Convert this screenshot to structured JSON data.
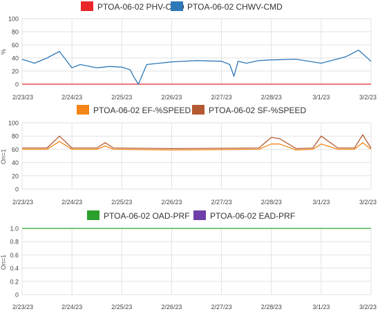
{
  "chart_data": [
    {
      "type": "line",
      "title": "",
      "xlabel": "",
      "ylabel": "%",
      "ylim": [
        0,
        100
      ],
      "yticks": [
        0,
        20,
        40,
        60,
        80,
        100
      ],
      "xlim": [
        "2/23/23",
        "3/2/23"
      ],
      "x_ticks": [
        "2/23/23",
        "2/24/23",
        "2/25/23",
        "2/26/23",
        "2/27/23",
        "2/28/23",
        "3/1/23",
        "3/2/23"
      ],
      "grid": true,
      "legend": "top",
      "series": [
        {
          "name": "PTOA-06-02 PHV-CMD",
          "color": "#e8262a",
          "x": [
            "2/23/23",
            "3/2/23"
          ],
          "y": [
            0,
            0
          ]
        },
        {
          "name": "PTOA-06-02 CHWV-CMD",
          "color": "#2f78b7",
          "x": [
            "2/23/23",
            "2/23/23 06:00",
            "2/23/23 12:00",
            "2/23/23 18:00",
            "2/24/23",
            "2/24/23 04:00",
            "2/24/23 12:00",
            "2/24/23 18:00",
            "2/25/23",
            "2/25/23 04:00",
            "2/25/23 06:00",
            "2/25/23 08:00",
            "2/25/23 12:00",
            "2/25/23 18:00",
            "2/26/23",
            "2/26/23 12:00",
            "2/27/23",
            "2/27/23 04:00",
            "2/27/23 06:00",
            "2/27/23 08:00",
            "2/27/23 12:00",
            "2/27/23 18:00",
            "2/28/23",
            "2/28/23 12:00",
            "3/1/23",
            "3/1/23 12:00",
            "3/1/23 18:00",
            "3/2/23"
          ],
          "y": [
            38,
            32,
            40,
            50,
            25,
            30,
            25,
            27,
            26,
            22,
            10,
            0,
            30,
            32,
            34,
            36,
            35,
            30,
            12,
            35,
            32,
            36,
            37,
            38,
            32,
            42,
            52,
            35
          ]
        }
      ]
    },
    {
      "type": "line",
      "title": "",
      "xlabel": "",
      "ylabel": "On=1",
      "ylim": [
        0,
        100
      ],
      "yticks": [
        0,
        20,
        40,
        60,
        80,
        100
      ],
      "xlim": [
        "2/23/23",
        "3/2/23"
      ],
      "x_ticks": [
        "2/23/23",
        "2/24/23",
        "2/25/23",
        "2/26/23",
        "2/27/23",
        "2/28/23",
        "3/1/23",
        "3/2/23"
      ],
      "grid": true,
      "legend": "top",
      "series": [
        {
          "name": "PTOA-06-02 EF-%SPEED",
          "color": "#f58518",
          "x": [
            "2/23/23",
            "2/23/23 12:00",
            "2/23/23 18:00",
            "2/24/23",
            "2/24/23 12:00",
            "2/24/23 16:00",
            "2/24/23 20:00",
            "2/26/23",
            "2/27/23 18:00",
            "2/28/23",
            "2/28/23 04:00",
            "2/28/23 12:00",
            "2/28/23 20:00",
            "3/1/23",
            "3/1/23 08:00",
            "3/1/23 16:00",
            "3/1/23 20:00",
            "3/2/23"
          ],
          "y": [
            60,
            60,
            72,
            60,
            60,
            65,
            60,
            59,
            60,
            68,
            68,
            59,
            60,
            68,
            60,
            60,
            70,
            60
          ]
        },
        {
          "name": "PTOA-06-02 SF-%SPEED",
          "color": "#b55a30",
          "x": [
            "2/23/23",
            "2/23/23 12:00",
            "2/23/23 18:00",
            "2/24/23",
            "2/24/23 12:00",
            "2/24/23 16:00",
            "2/24/23 20:00",
            "2/26/23",
            "2/27/23 18:00",
            "2/28/23",
            "2/28/23 04:00",
            "2/28/23 12:00",
            "2/28/23 20:00",
            "3/1/23",
            "3/1/23 08:00",
            "3/1/23 16:00",
            "3/1/23 20:00",
            "3/2/23"
          ],
          "y": [
            62,
            62,
            80,
            62,
            62,
            70,
            62,
            61,
            62,
            78,
            76,
            61,
            62,
            80,
            62,
            62,
            82,
            62
          ]
        }
      ]
    },
    {
      "type": "line",
      "title": "",
      "xlabel": "",
      "ylabel": "On=1",
      "ylim": [
        0,
        1.0
      ],
      "yticks": [
        0,
        0.2,
        0.4,
        0.6,
        0.8,
        1.0
      ],
      "ytick_labels": [
        "0",
        "0.2",
        "0.4",
        "0.6",
        "0.8",
        "1.0"
      ],
      "xlim": [
        "2/23/23",
        "3/2/23"
      ],
      "x_ticks": [
        "2/23/23",
        "2/24/23",
        "2/25/23",
        "2/26/23",
        "2/27/23",
        "2/28/23",
        "3/1/23",
        "3/2/23"
      ],
      "grid": true,
      "legend": "top",
      "series": [
        {
          "name": "PTOA-06-02 OAD-PRF",
          "color": "#2ca02c",
          "x": [
            "2/23/23",
            "3/2/23"
          ],
          "y": [
            1,
            1
          ]
        },
        {
          "name": "PTOA-06-02 EAD-PRF",
          "color": "#6f3fa8",
          "x": [],
          "y": []
        }
      ]
    }
  ]
}
